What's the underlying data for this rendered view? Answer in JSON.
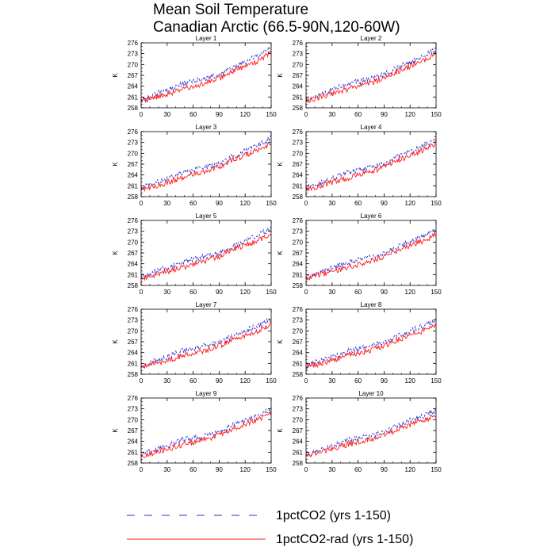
{
  "title": {
    "line1": "Mean Soil Temperature",
    "line2": "Canadian Arctic (66.5-90N,120-60W)"
  },
  "legend": [
    {
      "label": "1pctCO2 (yrs 1-150)",
      "color": "#2b2bcc",
      "dash": "dashed"
    },
    {
      "label": "1pctCO2-rad (yrs 1-150)",
      "color": "#ff1a1a",
      "dash": "solid"
    }
  ],
  "chart_data": [
    {
      "type": "line",
      "title": "Layer 1",
      "ylabel": "K",
      "xlim": [
        0,
        150
      ],
      "ylim": [
        258,
        276
      ],
      "xticks": [
        0,
        30,
        60,
        90,
        120,
        150
      ],
      "yticks": [
        258,
        261,
        264,
        267,
        270,
        273,
        276
      ],
      "x": [
        0,
        15,
        30,
        45,
        60,
        75,
        90,
        105,
        120,
        135,
        150
      ],
      "series": [
        {
          "name": "1pctCO2 (yrs 1-150)",
          "values": [
            260.2,
            261.6,
            263.0,
            264.4,
            265.3,
            266.2,
            267.2,
            269.0,
            270.6,
            272.4,
            274.6
          ]
        },
        {
          "name": "1pctCO2-rad (yrs 1-150)",
          "values": [
            260.0,
            260.9,
            261.9,
            263.0,
            264.0,
            265.0,
            266.2,
            268.1,
            269.6,
            271.0,
            273.2
          ]
        }
      ]
    },
    {
      "type": "line",
      "title": "Layer 2",
      "ylabel": "K",
      "xlim": [
        0,
        150
      ],
      "ylim": [
        258,
        276
      ],
      "xticks": [
        0,
        30,
        60,
        90,
        120,
        150
      ],
      "yticks": [
        258,
        261,
        264,
        267,
        270,
        273,
        276
      ],
      "x": [
        0,
        15,
        30,
        45,
        60,
        75,
        90,
        105,
        120,
        135,
        150
      ],
      "series": [
        {
          "name": "1pctCO2 (yrs 1-150)",
          "values": [
            260.2,
            261.6,
            263.0,
            264.4,
            265.3,
            266.2,
            267.2,
            269.0,
            270.6,
            272.4,
            274.6
          ]
        },
        {
          "name": "1pctCO2-rad (yrs 1-150)",
          "values": [
            260.0,
            260.9,
            261.9,
            263.0,
            264.0,
            265.0,
            266.2,
            268.1,
            269.6,
            271.0,
            273.2
          ]
        }
      ]
    },
    {
      "type": "line",
      "title": "Layer 3",
      "ylabel": "K",
      "xlim": [
        0,
        150
      ],
      "ylim": [
        258,
        276
      ],
      "xticks": [
        0,
        30,
        60,
        90,
        120,
        150
      ],
      "yticks": [
        258,
        261,
        264,
        267,
        270,
        273,
        276
      ],
      "x": [
        0,
        15,
        30,
        45,
        60,
        75,
        90,
        105,
        120,
        135,
        150
      ],
      "series": [
        {
          "name": "1pctCO2 (yrs 1-150)",
          "values": [
            260.2,
            261.6,
            263.0,
            264.4,
            265.3,
            266.2,
            267.2,
            269.0,
            270.5,
            272.2,
            274.3
          ]
        },
        {
          "name": "1pctCO2-rad (yrs 1-150)",
          "values": [
            260.0,
            260.9,
            261.9,
            263.0,
            264.0,
            265.0,
            266.2,
            268.1,
            269.5,
            270.9,
            273.0
          ]
        }
      ]
    },
    {
      "type": "line",
      "title": "Layer 4",
      "ylabel": "K",
      "xlim": [
        0,
        150
      ],
      "ylim": [
        258,
        276
      ],
      "xticks": [
        0,
        30,
        60,
        90,
        120,
        150
      ],
      "yticks": [
        258,
        261,
        264,
        267,
        270,
        273,
        276
      ],
      "x": [
        0,
        15,
        30,
        45,
        60,
        75,
        90,
        105,
        120,
        135,
        150
      ],
      "series": [
        {
          "name": "1pctCO2 (yrs 1-150)",
          "values": [
            260.2,
            261.6,
            263.0,
            264.4,
            265.3,
            266.2,
            267.2,
            269.0,
            270.5,
            272.2,
            274.2
          ]
        },
        {
          "name": "1pctCO2-rad (yrs 1-150)",
          "values": [
            260.0,
            260.9,
            261.9,
            263.0,
            264.0,
            265.0,
            266.2,
            268.0,
            269.4,
            270.8,
            272.9
          ]
        }
      ]
    },
    {
      "type": "line",
      "title": "Layer 5",
      "ylabel": "K",
      "xlim": [
        0,
        150
      ],
      "ylim": [
        258,
        276
      ],
      "xticks": [
        0,
        30,
        60,
        90,
        120,
        150
      ],
      "yticks": [
        258,
        261,
        264,
        267,
        270,
        273,
        276
      ],
      "x": [
        0,
        15,
        30,
        45,
        60,
        75,
        90,
        105,
        120,
        135,
        150
      ],
      "series": [
        {
          "name": "1pctCO2 (yrs 1-150)",
          "values": [
            260.3,
            261.6,
            263.0,
            264.3,
            265.2,
            266.1,
            267.0,
            268.8,
            270.3,
            271.9,
            273.8
          ]
        },
        {
          "name": "1pctCO2-rad (yrs 1-150)",
          "values": [
            260.1,
            260.9,
            261.9,
            262.9,
            263.9,
            264.9,
            266.0,
            267.8,
            269.2,
            270.5,
            272.5
          ]
        }
      ]
    },
    {
      "type": "line",
      "title": "Layer 6",
      "ylabel": "K",
      "xlim": [
        0,
        150
      ],
      "ylim": [
        258,
        276
      ],
      "xticks": [
        0,
        30,
        60,
        90,
        120,
        150
      ],
      "yticks": [
        258,
        261,
        264,
        267,
        270,
        273,
        276
      ],
      "x": [
        0,
        15,
        30,
        45,
        60,
        75,
        90,
        105,
        120,
        135,
        150
      ],
      "series": [
        {
          "name": "1pctCO2 (yrs 1-150)",
          "values": [
            260.3,
            261.6,
            262.9,
            264.2,
            265.1,
            266.0,
            266.9,
            268.6,
            270.1,
            271.7,
            273.6
          ]
        },
        {
          "name": "1pctCO2-rad (yrs 1-150)",
          "values": [
            260.1,
            260.9,
            261.9,
            262.9,
            263.9,
            264.8,
            265.9,
            267.7,
            269.0,
            270.3,
            272.2
          ]
        }
      ]
    },
    {
      "type": "line",
      "title": "Layer 7",
      "ylabel": "K",
      "xlim": [
        0,
        150
      ],
      "ylim": [
        258,
        276
      ],
      "xticks": [
        0,
        30,
        60,
        90,
        120,
        150
      ],
      "yticks": [
        258,
        261,
        264,
        267,
        270,
        273,
        276
      ],
      "x": [
        0,
        15,
        30,
        45,
        60,
        75,
        90,
        105,
        120,
        135,
        150
      ],
      "series": [
        {
          "name": "1pctCO2 (yrs 1-150)",
          "values": [
            260.3,
            261.6,
            262.9,
            264.2,
            265.1,
            265.9,
            266.8,
            268.5,
            270.0,
            271.5,
            273.3
          ]
        },
        {
          "name": "1pctCO2-rad (yrs 1-150)",
          "values": [
            260.1,
            260.9,
            261.9,
            262.9,
            263.8,
            264.7,
            265.8,
            267.6,
            268.9,
            270.1,
            271.9
          ]
        }
      ]
    },
    {
      "type": "line",
      "title": "Layer 8",
      "ylabel": "K",
      "xlim": [
        0,
        150
      ],
      "ylim": [
        258,
        276
      ],
      "xticks": [
        0,
        30,
        60,
        90,
        120,
        150
      ],
      "yticks": [
        258,
        261,
        264,
        267,
        270,
        273,
        276
      ],
      "x": [
        0,
        15,
        30,
        45,
        60,
        75,
        90,
        105,
        120,
        135,
        150
      ],
      "series": [
        {
          "name": "1pctCO2 (yrs 1-150)",
          "values": [
            260.3,
            261.6,
            262.9,
            264.2,
            265.0,
            265.8,
            266.7,
            268.4,
            269.9,
            271.3,
            273.1
          ]
        },
        {
          "name": "1pctCO2-rad (yrs 1-150)",
          "values": [
            260.1,
            260.9,
            261.9,
            262.9,
            263.8,
            264.7,
            265.7,
            267.5,
            268.8,
            270.0,
            271.7
          ]
        }
      ]
    },
    {
      "type": "line",
      "title": "Layer 9",
      "ylabel": "K",
      "xlim": [
        0,
        150
      ],
      "ylim": [
        258,
        276
      ],
      "xticks": [
        0,
        30,
        60,
        90,
        120,
        150
      ],
      "yticks": [
        258,
        261,
        264,
        267,
        270,
        273,
        276
      ],
      "x": [
        0,
        15,
        30,
        45,
        60,
        75,
        90,
        105,
        120,
        135,
        150
      ],
      "series": [
        {
          "name": "1pctCO2 (yrs 1-150)",
          "values": [
            260.3,
            261.6,
            262.9,
            264.1,
            264.9,
            265.7,
            266.6,
            268.3,
            269.8,
            271.2,
            272.9
          ]
        },
        {
          "name": "1pctCO2-rad (yrs 1-150)",
          "values": [
            260.1,
            260.9,
            261.9,
            262.9,
            263.8,
            264.6,
            265.6,
            267.4,
            268.7,
            269.9,
            271.5
          ]
        }
      ]
    },
    {
      "type": "line",
      "title": "Layer 10",
      "ylabel": "K",
      "xlim": [
        0,
        150
      ],
      "ylim": [
        258,
        276
      ],
      "xticks": [
        0,
        30,
        60,
        90,
        120,
        150
      ],
      "yticks": [
        258,
        261,
        264,
        267,
        270,
        273,
        276
      ],
      "x": [
        0,
        15,
        30,
        45,
        60,
        75,
        90,
        105,
        120,
        135,
        150
      ],
      "series": [
        {
          "name": "1pctCO2 (yrs 1-150)",
          "values": [
            260.3,
            261.6,
            262.9,
            264.1,
            264.9,
            265.7,
            266.5,
            268.2,
            269.7,
            271.0,
            272.8
          ]
        },
        {
          "name": "1pctCO2-rad (yrs 1-150)",
          "values": [
            260.1,
            260.9,
            261.9,
            262.9,
            263.8,
            264.6,
            265.6,
            267.3,
            268.6,
            269.8,
            271.4
          ]
        }
      ]
    }
  ]
}
